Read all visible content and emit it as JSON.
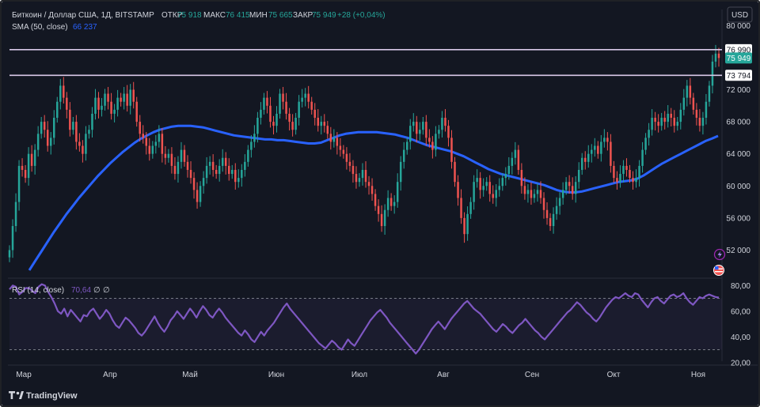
{
  "header": {
    "symbol": "Биткоин / Доллар США, 1Д, BITSTAMP",
    "open_label": "ОТКР",
    "open_value": "75 918",
    "high_label": "МАКС",
    "high_value": "76 415",
    "low_label": "МИН",
    "low_value": "75 665",
    "close_label": "ЗАКР",
    "close_value": "75 949",
    "change": "+28 (+0,04%)",
    "sma_label": "SMA (50, close)",
    "sma_value": "66 237",
    "currency_button": "USD"
  },
  "rsi": {
    "label": "RSI (14, close)",
    "value": "70,64",
    "extra1": "∅",
    "extra2": "∅"
  },
  "footer": {
    "brand": "TradingView"
  },
  "colors": {
    "background": "#131722",
    "up": "#26a69a",
    "down": "#ef5350",
    "sma": "#2962ff",
    "rsi": "#7e57c2",
    "grid": "#2a2e39",
    "text": "#d1d4dc",
    "level_line": "#d8c8e8",
    "price_tag": "#26a69a"
  },
  "chart_data": [
    {
      "type": "candlestick",
      "title": "Биткоин / Доллар США, 1Д, BITSTAMP",
      "ylim": [
        48500,
        82000
      ],
      "y_ticks": [
        52000,
        56000,
        60000,
        64000,
        68000,
        72000,
        80000
      ],
      "y_tick_labels": [
        "52 000",
        "56 000",
        "60 000",
        "64 000",
        "68 000",
        "72 000",
        "80 000"
      ],
      "x_ticks": [
        "Мар",
        "Апр",
        "Май",
        "Июн",
        "Июл",
        "Авг",
        "Сен",
        "Окт",
        "Ноя"
      ],
      "grid": false,
      "levels": [
        {
          "value": 76990,
          "label": "76 990"
        },
        {
          "value": 73794,
          "label": "73 794"
        }
      ],
      "last_price": {
        "value": 75949,
        "label": "75 949"
      },
      "closes": [
        52000,
        55000,
        58000,
        62500,
        62000,
        61000,
        64000,
        62500,
        64500,
        66500,
        68000,
        67000,
        65000,
        66000,
        68500,
        70500,
        72500,
        71000,
        69500,
        67000,
        68000,
        65500,
        65000,
        64000,
        66500,
        67000,
        69000,
        71000,
        69500,
        70000,
        71500,
        70500,
        69000,
        69500,
        71000,
        70500,
        71500,
        70000,
        72000,
        70500,
        68000,
        66500,
        66000,
        65000,
        64000,
        65000,
        65500,
        66500,
        64000,
        63500,
        64000,
        62500,
        61500,
        63000,
        64500,
        63000,
        62000,
        61000,
        59500,
        58000,
        60000,
        61000,
        62500,
        63000,
        62000,
        61500,
        62500,
        63500,
        62500,
        61500,
        62000,
        60500,
        61000,
        62000,
        63000,
        64500,
        65500,
        66500,
        68500,
        69500,
        71000,
        70000,
        68000,
        67500,
        69000,
        71500,
        70500,
        69000,
        68000,
        67000,
        68500,
        70500,
        71000,
        71500,
        70500,
        69500,
        68500,
        67500,
        68000,
        67500,
        66500,
        65500,
        66000,
        65000,
        64500,
        64000,
        63000,
        62500,
        61500,
        60500,
        61000,
        62000,
        60500,
        60000,
        59000,
        57500,
        56500,
        55000,
        57000,
        58500,
        57500,
        58000,
        60500,
        63000,
        64500,
        65500,
        67500,
        68000,
        66500,
        67000,
        68000,
        66000,
        65500,
        64500,
        66500,
        67000,
        68500,
        67500,
        66000,
        63000,
        60500,
        58500,
        56000,
        54000,
        56500,
        58000,
        60500,
        61000,
        59500,
        60000,
        60500,
        59000,
        58500,
        59500,
        60000,
        61000,
        61500,
        62500,
        63500,
        64500,
        62000,
        60000,
        59000,
        59500,
        58500,
        59000,
        59500,
        58500,
        57000,
        56000,
        55000,
        56500,
        57500,
        58500,
        59500,
        60500,
        60000,
        59000,
        60500,
        62000,
        63500,
        63000,
        64000,
        64500,
        65000,
        64000,
        65500,
        66000,
        65500,
        62500,
        61000,
        60500,
        61500,
        62500,
        62000,
        61000,
        60500,
        61000,
        62500,
        64500,
        66000,
        67000,
        68500,
        68000,
        67500,
        68500,
        68000,
        69000,
        68500,
        67500,
        68000,
        69500,
        71000,
        72500,
        71000,
        69500,
        68500,
        67500,
        68500,
        70500,
        72500,
        75500,
        76500,
        75949
      ],
      "series": [
        {
          "name": "SMA (50, close)",
          "values": [
            49500,
            50700,
            51900,
            53100,
            54300,
            55400,
            56500,
            57500,
            58500,
            59400,
            60300,
            61200,
            62000,
            62800,
            63500,
            64200,
            64800,
            65400,
            65900,
            66300,
            66700,
            67000,
            67200,
            67400,
            67500,
            67500,
            67500,
            67400,
            67300,
            67100,
            66900,
            66700,
            66500,
            66300,
            66200,
            66100,
            66000,
            65900,
            65800,
            65800,
            65700,
            65700,
            65600,
            65500,
            65400,
            65300,
            65300,
            65400,
            65700,
            66000,
            66300,
            66500,
            66600,
            66700,
            66700,
            66700,
            66700,
            66600,
            66500,
            66400,
            66200,
            66000,
            65700,
            65400,
            65100,
            64900,
            64700,
            64500,
            64300,
            64000,
            63700,
            63300,
            62900,
            62500,
            62100,
            61800,
            61500,
            61300,
            61100,
            60900,
            60700,
            60500,
            60300,
            60100,
            59800,
            59500,
            59300,
            59200,
            59200,
            59300,
            59500,
            59700,
            59900,
            60100,
            60300,
            60500,
            60600,
            60700,
            60900,
            61300,
            61800,
            62300,
            62800,
            63200,
            63600,
            64000,
            64400,
            64800,
            65200,
            65600,
            65900,
            66237
          ]
        }
      ],
      "rsi_panel": {
        "name": "RSI (14, close)",
        "ylim": [
          18,
          82
        ],
        "y_ticks": [
          20,
          40,
          60,
          80
        ],
        "y_tick_labels": [
          "20,00",
          "40,00",
          "60,00",
          "80,00"
        ],
        "bands": [
          70,
          30
        ],
        "values": [
          77,
          80,
          79,
          73,
          75,
          78,
          78,
          76,
          74,
          79,
          81,
          80,
          75,
          71,
          66,
          60,
          58,
          62,
          56,
          61,
          58,
          55,
          52,
          57,
          56,
          60,
          62,
          58,
          54,
          57,
          61,
          58,
          53,
          49,
          47,
          51,
          55,
          53,
          50,
          47,
          43,
          41,
          44,
          48,
          52,
          56,
          51,
          47,
          44,
          48,
          53,
          56,
          60,
          57,
          54,
          58,
          62,
          59,
          55,
          60,
          64,
          61,
          57,
          55,
          59,
          62,
          59,
          55,
          52,
          49,
          46,
          43,
          41,
          45,
          42,
          38,
          36,
          40,
          44,
          41,
          45,
          48,
          51,
          55,
          59,
          63,
          66,
          62,
          59,
          56,
          53,
          50,
          47,
          44,
          41,
          38,
          35,
          33,
          31,
          34,
          37,
          35,
          32,
          30,
          34,
          38,
          35,
          33,
          37,
          41,
          45,
          49,
          53,
          56,
          59,
          61,
          58,
          55,
          51,
          48,
          45,
          42,
          39,
          36,
          33,
          30,
          27,
          30,
          34,
          38,
          42,
          46,
          49,
          52,
          49,
          46,
          50,
          54,
          57,
          60,
          63,
          66,
          68,
          65,
          62,
          60,
          58,
          55,
          52,
          49,
          46,
          44,
          47,
          50,
          48,
          45,
          43,
          46,
          49,
          51,
          54,
          51,
          48,
          45,
          43,
          40,
          38,
          41,
          44,
          47,
          50,
          53,
          56,
          59,
          61,
          64,
          67,
          65,
          62,
          59,
          57,
          54,
          52,
          55,
          59,
          63,
          66,
          69,
          71,
          70,
          72,
          74,
          72,
          71,
          74,
          73,
          69,
          66,
          63,
          67,
          70,
          71,
          68,
          66,
          69,
          72,
          73,
          71,
          72,
          74,
          70,
          67,
          65,
          68,
          71,
          70,
          72,
          73,
          72,
          71,
          70.64
        ]
      }
    }
  ]
}
